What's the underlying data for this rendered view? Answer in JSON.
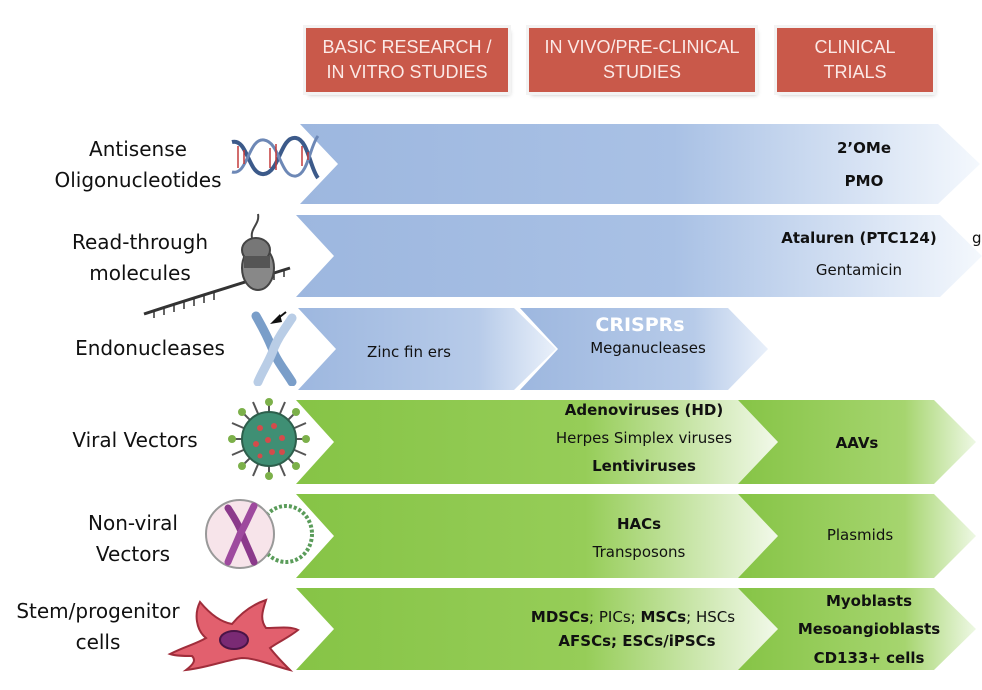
{
  "phases": [
    {
      "line1": "BASIC RESEARCH /",
      "line2": "IN VITRO STUDIES"
    },
    {
      "line1": "IN VIVO/PRE-CLINICAL",
      "line2": "STUDIES"
    },
    {
      "line1": "CLINICAL",
      "line2": "TRIALS"
    }
  ],
  "rows": {
    "antisense": {
      "line1": "Antisense",
      "line2": "Oligonucleotides",
      "items": [
        "2’OMe",
        "PMO"
      ]
    },
    "readthrough": {
      "line1": "Read-through",
      "line2": "molecules",
      "items": [
        "Ataluren (PTC124)",
        "Gentamicin"
      ],
      "edge_text": "g"
    },
    "endonucleases": {
      "line1": "Endonucleases",
      "items": [
        "Zinc fin  ers",
        "CRISPRs",
        "Meganucleases"
      ]
    },
    "viral": {
      "line1": "Viral Vectors",
      "items": [
        "Adenoviruses (HD)",
        "Herpes Simplex viruses",
        "Lentiviruses"
      ],
      "clinical": [
        "AAVs"
      ]
    },
    "nonviral": {
      "line1": "Non-viral",
      "line2": "Vectors",
      "items": [
        "HACs",
        "Transposons"
      ],
      "clinical": [
        "Plasmids"
      ]
    },
    "stem": {
      "line1": "Stem/progenitor",
      "line2": "cells",
      "items_line1": {
        "a": "MDSCs",
        "sep1": "; ",
        "b": "PICs",
        "sep2": "; ",
        "c": "MSCs",
        "sep3": "; ",
        "d": "HSCs"
      },
      "items_line2": {
        "a": "AFSCs",
        "sep1": "; ",
        "b": "ESCs/iPSCs"
      },
      "clinical": [
        "Myoblasts",
        "Mesoangioblasts",
        "CD133+ cells"
      ]
    }
  },
  "colors": {
    "phase": "#c9594a",
    "blue": "#9bb5de",
    "green": "#8cc84a"
  }
}
